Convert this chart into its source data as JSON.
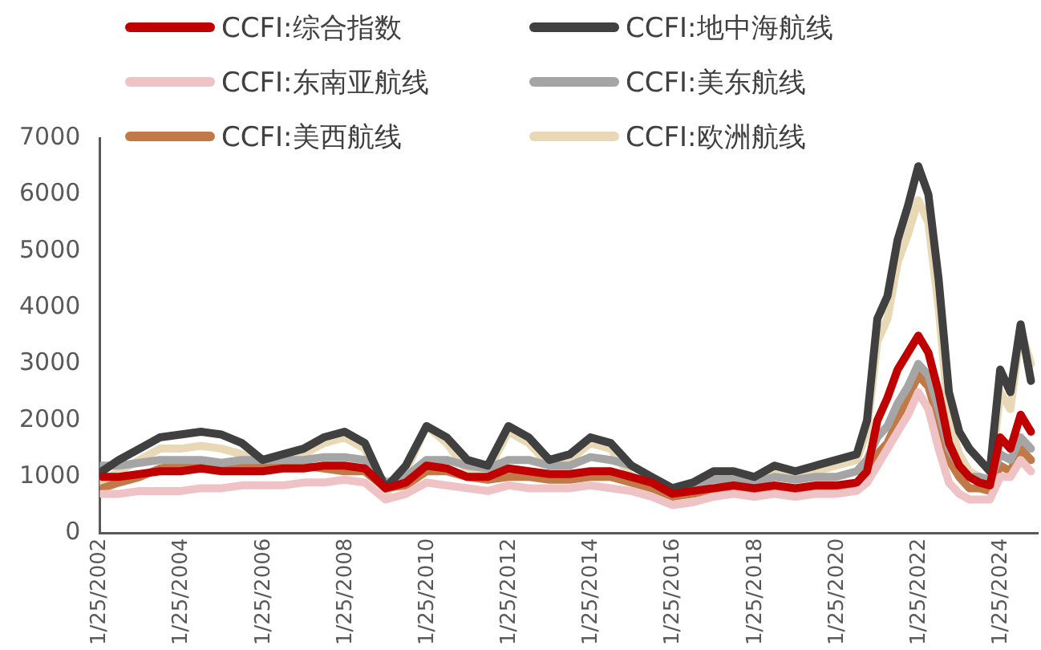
{
  "chart_data": {
    "type": "line",
    "legend": "top",
    "grid": false,
    "marker": "none",
    "line_style": "solid",
    "x": [
      "2002-02",
      "2002-07",
      "2003-01",
      "2003-07",
      "2004-01",
      "2004-07",
      "2005-01",
      "2005-07",
      "2006-01",
      "2006-07",
      "2007-01",
      "2007-07",
      "2008-01",
      "2008-07",
      "2009-01",
      "2009-07",
      "2010-01",
      "2010-07",
      "2011-01",
      "2011-07",
      "2012-01",
      "2012-07",
      "2013-01",
      "2013-07",
      "2014-01",
      "2014-07",
      "2015-01",
      "2015-07",
      "2016-01",
      "2016-07",
      "2017-01",
      "2017-07",
      "2018-01",
      "2018-07",
      "2019-01",
      "2019-07",
      "2020-01",
      "2020-07",
      "2020-10",
      "2021-01",
      "2021-04",
      "2021-07",
      "2021-10",
      "2022-01",
      "2022-04",
      "2022-07",
      "2022-10",
      "2023-01",
      "2023-04",
      "2023-07",
      "2023-10",
      "2024-01",
      "2024-04",
      "2024-07",
      "2024-10"
    ],
    "xlim": [
      "2002-01-25",
      "2024-12-15"
    ],
    "xticks": [
      {
        "value": "2002-01-25",
        "label": "1/25/2002"
      },
      {
        "value": "2004-01-25",
        "label": "1/25/2004"
      },
      {
        "value": "2006-01-25",
        "label": "1/25/2006"
      },
      {
        "value": "2008-01-25",
        "label": "1/25/2008"
      },
      {
        "value": "2010-01-25",
        "label": "1/25/2010"
      },
      {
        "value": "2012-01-25",
        "label": "1/25/2012"
      },
      {
        "value": "2014-01-25",
        "label": "1/25/2014"
      },
      {
        "value": "2016-01-25",
        "label": "1/25/2016"
      },
      {
        "value": "2018-01-25",
        "label": "1/25/2018"
      },
      {
        "value": "2020-01-25",
        "label": "1/25/2020"
      },
      {
        "value": "2022-01-25",
        "label": "1/25/2022"
      },
      {
        "value": "2024-01-25",
        "label": "1/25/2024"
      }
    ],
    "ylim": [
      0,
      7000
    ],
    "yticks": [
      0,
      1000,
      2000,
      3000,
      4000,
      5000,
      6000,
      7000
    ],
    "series": [
      {
        "name": "CCFI:综合指数",
        "color": "#c00000",
        "values": [
          1000,
          1000,
          1050,
          1100,
          1100,
          1150,
          1100,
          1100,
          1100,
          1150,
          1150,
          1200,
          1200,
          1150,
          800,
          900,
          1200,
          1150,
          1000,
          1000,
          1150,
          1100,
          1050,
          1050,
          1100,
          1100,
          1000,
          900,
          700,
          750,
          800,
          850,
          800,
          850,
          800,
          850,
          850,
          900,
          1100,
          2000,
          2400,
          2900,
          3200,
          3500,
          3200,
          2500,
          1600,
          1200,
          1000,
          900,
          850,
          1700,
          1500,
          2100,
          1800
        ]
      },
      {
        "name": "CCFI:地中海航线",
        "color": "#404040",
        "values": [
          1100,
          1300,
          1500,
          1700,
          1750,
          1800,
          1750,
          1600,
          1300,
          1400,
          1500,
          1700,
          1800,
          1600,
          800,
          1200,
          1900,
          1700,
          1300,
          1200,
          1900,
          1700,
          1300,
          1400,
          1700,
          1600,
          1200,
          1000,
          800,
          900,
          1100,
          1100,
          1000,
          1200,
          1100,
          1200,
          1300,
          1400,
          2000,
          3800,
          4200,
          5200,
          5800,
          6500,
          6000,
          4500,
          2500,
          1800,
          1500,
          1300,
          1100,
          2900,
          2500,
          3700,
          2700
        ]
      },
      {
        "name": "CCFI:东南亚航线",
        "color": "#efc3c6",
        "values": [
          700,
          700,
          750,
          750,
          750,
          800,
          800,
          850,
          850,
          850,
          900,
          900,
          950,
          900,
          600,
          700,
          900,
          850,
          800,
          750,
          850,
          800,
          800,
          800,
          850,
          800,
          750,
          650,
          500,
          550,
          650,
          700,
          650,
          700,
          650,
          700,
          700,
          750,
          900,
          1200,
          1500,
          1800,
          2100,
          2500,
          2200,
          1500,
          900,
          700,
          600,
          600,
          600,
          1000,
          1000,
          1300,
          1100
        ]
      },
      {
        "name": "CCFI:美东航线",
        "color": "#a5a5a5",
        "values": [
          1200,
          1200,
          1250,
          1300,
          1300,
          1300,
          1250,
          1300,
          1300,
          1300,
          1300,
          1350,
          1350,
          1300,
          900,
          1000,
          1300,
          1300,
          1200,
          1150,
          1300,
          1300,
          1200,
          1200,
          1350,
          1300,
          1200,
          1000,
          800,
          850,
          950,
          950,
          900,
          1000,
          950,
          1000,
          1000,
          1100,
          1300,
          1700,
          1900,
          2300,
          2600,
          3000,
          2800,
          2200,
          1500,
          1200,
          1000,
          1000,
          950,
          1400,
          1300,
          1700,
          1500
        ]
      },
      {
        "name": "CCFI:美西航线",
        "color": "#c07a48",
        "values": [
          800,
          900,
          1000,
          1150,
          1200,
          1250,
          1200,
          1200,
          1200,
          1200,
          1200,
          1150,
          1100,
          1100,
          800,
          850,
          1100,
          1100,
          1000,
          950,
          1000,
          1000,
          950,
          950,
          1000,
          1000,
          900,
          800,
          650,
          700,
          750,
          800,
          750,
          800,
          750,
          800,
          800,
          850,
          1000,
          1400,
          1600,
          2000,
          2400,
          2800,
          2600,
          2000,
          1300,
          1000,
          800,
          800,
          750,
          1200,
          1100,
          1500,
          1300
        ]
      },
      {
        "name": "CCFI:欧洲航线",
        "color": "#e8d8b6",
        "values": [
          900,
          1100,
          1300,
          1500,
          1500,
          1550,
          1500,
          1400,
          1200,
          1300,
          1400,
          1600,
          1700,
          1500,
          700,
          1100,
          1900,
          1600,
          1100,
          1100,
          1800,
          1600,
          1200,
          1300,
          1600,
          1500,
          1000,
          900,
          700,
          800,
          1000,
          1000,
          900,
          1100,
          1000,
          1100,
          1200,
          1300,
          1800,
          3400,
          3800,
          4800,
          5300,
          5900,
          5500,
          4000,
          2000,
          1400,
          1100,
          1000,
          900,
          2500,
          2200,
          3600,
          3000
        ]
      }
    ]
  }
}
